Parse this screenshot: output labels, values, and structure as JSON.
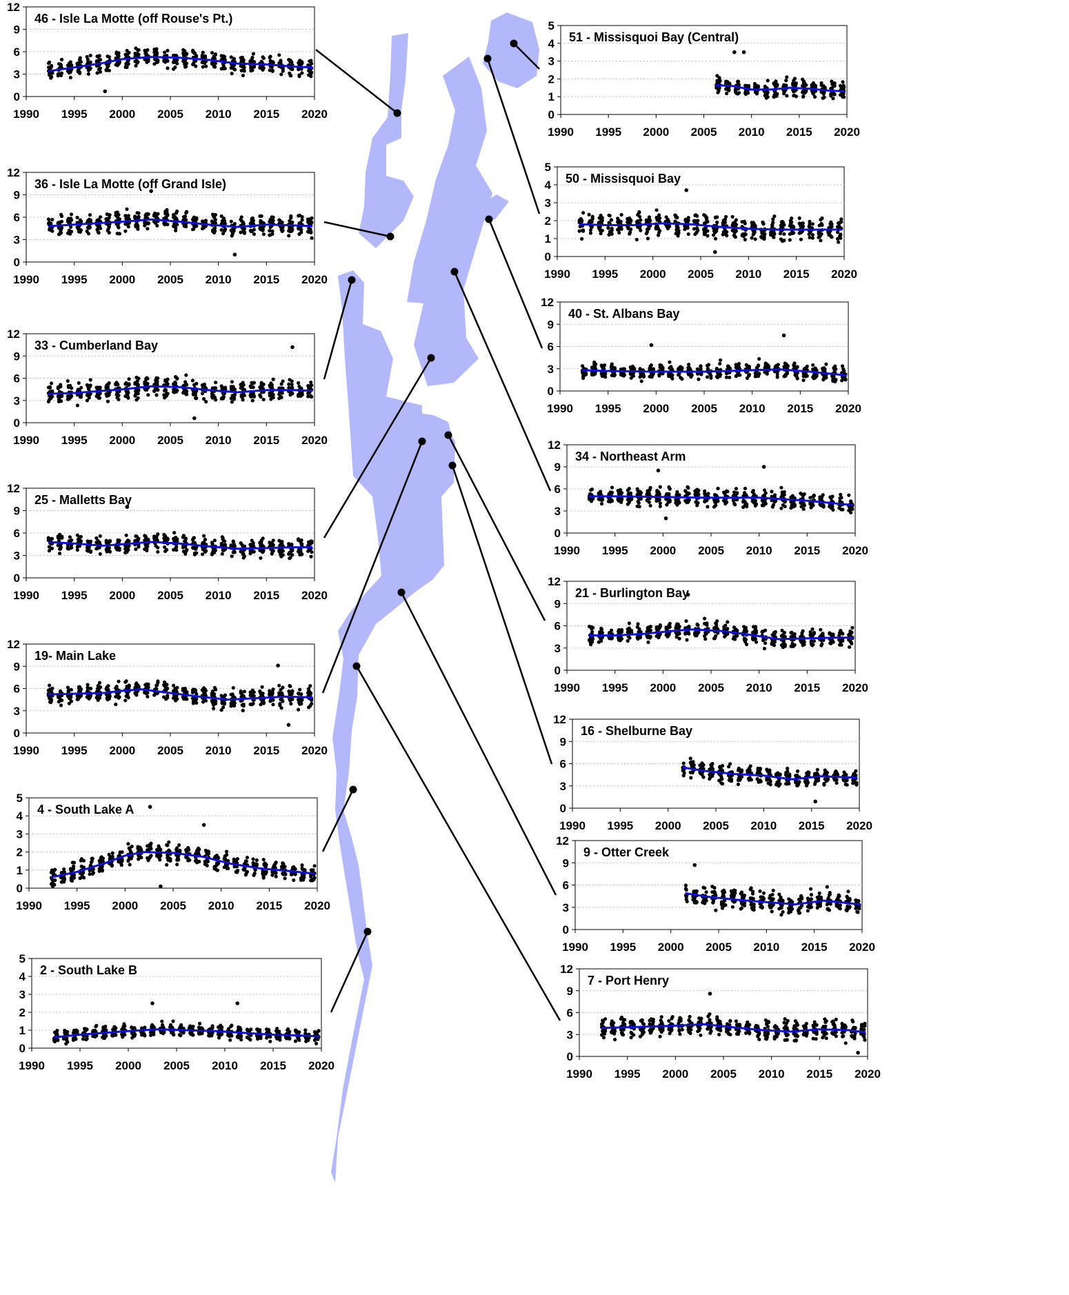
{
  "figure": {
    "colors": {
      "lake": "#b3b8fa",
      "trend": "#1010d8",
      "points": "#000000",
      "grid": "#bbbbbb",
      "leader": "#000000"
    },
    "x_ticks": [
      1990,
      1995,
      2000,
      2005,
      2010,
      2015,
      2020
    ]
  },
  "chart_data": [
    {
      "type": "scatter",
      "title": "46 - Isle La Motte (off Rouse's Pt.)",
      "side": "left",
      "xlim": [
        1990,
        2020
      ],
      "ylim": [
        0,
        12
      ],
      "yticks": [
        0,
        3,
        6,
        9,
        12
      ],
      "start": 1992.3,
      "end": 2019.8,
      "trend": {
        "x": [
          1992.3,
          1995,
          1998,
          2000,
          2003,
          2006,
          2009,
          2012,
          2015,
          2018,
          2019.8
        ],
        "y": [
          3.4,
          3.9,
          4.5,
          5.0,
          5.3,
          5.2,
          4.9,
          4.4,
          4.3,
          4.0,
          3.9
        ]
      },
      "spread": 1.0,
      "outliers": [
        {
          "x": 1998.2,
          "y": 0.7
        }
      ]
    },
    {
      "type": "scatter",
      "title": "36 - Isle La Motte (off Grand Isle)",
      "side": "left",
      "xlim": [
        1990,
        2020
      ],
      "ylim": [
        0,
        12
      ],
      "yticks": [
        0,
        3,
        6,
        9,
        12
      ],
      "start": 1992.3,
      "end": 2019.8,
      "trend": {
        "x": [
          1992.3,
          1995,
          2000,
          2003,
          2006,
          2009,
          2012,
          2015,
          2018,
          2019.8
        ],
        "y": [
          4.8,
          5.0,
          5.4,
          5.7,
          5.4,
          5.0,
          4.7,
          5.0,
          4.9,
          4.8
        ]
      },
      "spread": 1.1,
      "outliers": [
        {
          "x": 2003.0,
          "y": 9.5
        },
        {
          "x": 2011.7,
          "y": 1.0
        }
      ]
    },
    {
      "type": "scatter",
      "title": "33 - Cumberland Bay",
      "side": "left",
      "xlim": [
        1990,
        2020
      ],
      "ylim": [
        0,
        12
      ],
      "yticks": [
        0,
        3,
        6,
        9,
        12
      ],
      "start": 1992.3,
      "end": 2019.8,
      "trend": {
        "x": [
          1992.3,
          1995,
          2000,
          2003,
          2006,
          2009,
          2012,
          2015,
          2018,
          2019.8
        ],
        "y": [
          3.9,
          4.0,
          4.5,
          4.9,
          4.8,
          4.4,
          4.1,
          4.4,
          4.4,
          4.3
        ]
      },
      "spread": 1.1,
      "outliers": [
        {
          "x": 2007.5,
          "y": 0.6
        },
        {
          "x": 2017.7,
          "y": 10.2
        }
      ]
    },
    {
      "type": "scatter",
      "title": "25 - Malletts Bay",
      "side": "left",
      "xlim": [
        1990,
        2020
      ],
      "ylim": [
        0,
        12
      ],
      "yticks": [
        0,
        3,
        6,
        9,
        12
      ],
      "start": 1992.3,
      "end": 2019.8,
      "trend": {
        "x": [
          1992.3,
          1995,
          1998,
          2000,
          2003,
          2006,
          2009,
          2012,
          2015,
          2018,
          2019.8
        ],
        "y": [
          4.8,
          4.6,
          4.3,
          4.5,
          4.8,
          4.6,
          4.2,
          3.9,
          4.0,
          4.1,
          4.1
        ]
      },
      "spread": 1.0,
      "outliers": [
        {
          "x": 2000.5,
          "y": 9.5
        }
      ]
    },
    {
      "type": "scatter",
      "title": "19- Main Lake",
      "side": "left",
      "xlim": [
        1990,
        2020
      ],
      "ylim": [
        0,
        12
      ],
      "yticks": [
        0,
        3,
        6,
        9,
        12
      ],
      "start": 1992.3,
      "end": 2019.8,
      "trend": {
        "x": [
          1992.3,
          1995,
          1998,
          2000,
          2002,
          2005,
          2008,
          2011,
          2014,
          2017,
          2019.8
        ],
        "y": [
          5.2,
          5.3,
          5.4,
          5.7,
          5.9,
          5.4,
          4.9,
          4.5,
          4.7,
          4.9,
          4.8
        ]
      },
      "spread": 1.1,
      "outliers": [
        {
          "x": 2016.2,
          "y": 9.1
        },
        {
          "x": 2017.3,
          "y": 1.1
        }
      ]
    },
    {
      "type": "scatter",
      "title": "4 - South Lake A",
      "side": "left",
      "xlim": [
        1990,
        2020
      ],
      "ylim": [
        0,
        5
      ],
      "yticks": [
        0,
        1,
        2,
        3,
        4,
        5
      ],
      "start": 1992.3,
      "end": 2019.8,
      "trend": {
        "x": [
          1992.3,
          1995,
          1998,
          2000,
          2002,
          2005,
          2008,
          2011,
          2014,
          2017,
          2019.8
        ],
        "y": [
          0.6,
          0.9,
          1.4,
          1.8,
          2.0,
          1.95,
          1.75,
          1.35,
          1.1,
          0.95,
          0.8
        ]
      },
      "spread": 0.45,
      "outliers": [
        {
          "x": 2002.6,
          "y": 4.5
        },
        {
          "x": 2003.7,
          "y": 0.1
        },
        {
          "x": 2008.2,
          "y": 3.5
        }
      ]
    },
    {
      "type": "scatter",
      "title": "2 - South Lake B",
      "side": "left",
      "xlim": [
        1990,
        2020
      ],
      "ylim": [
        0,
        5
      ],
      "yticks": [
        0,
        1,
        2,
        3,
        4,
        5
      ],
      "start": 1992.3,
      "end": 2019.8,
      "trend": {
        "x": [
          1992.3,
          1995,
          2000,
          2003,
          2006,
          2009,
          2012,
          2015,
          2018,
          2019.8
        ],
        "y": [
          0.6,
          0.75,
          0.95,
          1.05,
          1.0,
          0.95,
          0.85,
          0.75,
          0.7,
          0.65
        ]
      },
      "spread": 0.3,
      "outliers": [
        {
          "x": 2002.5,
          "y": 2.5
        },
        {
          "x": 2011.3,
          "y": 2.5
        }
      ]
    },
    {
      "type": "scatter",
      "title": "51 - Missisquoi Bay (Central)",
      "side": "right",
      "xlim": [
        1990,
        2020
      ],
      "ylim": [
        0,
        5
      ],
      "yticks": [
        0,
        1,
        2,
        3,
        4,
        5
      ],
      "start": 2006.2,
      "end": 2019.8,
      "trend": {
        "x": [
          2006.2,
          2008,
          2010,
          2012,
          2014,
          2016,
          2018,
          2019.8
        ],
        "y": [
          1.65,
          1.6,
          1.4,
          1.4,
          1.5,
          1.45,
          1.35,
          1.3
        ]
      },
      "spread": 0.4,
      "outliers": [
        {
          "x": 2008.2,
          "y": 3.5
        },
        {
          "x": 2009.2,
          "y": 3.5
        }
      ]
    },
    {
      "type": "scatter",
      "title": "50 - Missisquoi Bay",
      "side": "right",
      "xlim": [
        1990,
        2020
      ],
      "ylim": [
        0,
        5
      ],
      "yticks": [
        0,
        1,
        2,
        3,
        4,
        5
      ],
      "start": 1992.3,
      "end": 2019.8,
      "trend": {
        "x": [
          1992.3,
          1995,
          1998,
          2001,
          2004,
          2007,
          2010,
          2013,
          2016,
          2019.8
        ],
        "y": [
          1.8,
          1.75,
          1.75,
          1.85,
          1.8,
          1.65,
          1.55,
          1.5,
          1.5,
          1.5
        ]
      },
      "spread": 0.5,
      "outliers": [
        {
          "x": 2003.5,
          "y": 3.7
        },
        {
          "x": 2006.5,
          "y": 0.25
        }
      ]
    },
    {
      "type": "scatter",
      "title": "40 - St. Albans Bay",
      "side": "right",
      "xlim": [
        1990,
        2020
      ],
      "ylim": [
        0,
        12
      ],
      "yticks": [
        0,
        3,
        6,
        9,
        12
      ],
      "start": 1992.3,
      "end": 2019.8,
      "trend": {
        "x": [
          1992.3,
          1995,
          2000,
          2005,
          2010,
          2013,
          2016,
          2019.8
        ],
        "y": [
          2.8,
          2.7,
          2.6,
          2.6,
          2.8,
          2.9,
          2.6,
          2.1
        ]
      },
      "spread": 0.9,
      "outliers": [
        {
          "x": 2013.3,
          "y": 7.5
        },
        {
          "x": 1999.5,
          "y": 6.2
        }
      ]
    },
    {
      "type": "scatter",
      "title": "34 - Northeast Arm",
      "side": "right",
      "xlim": [
        1990,
        2020
      ],
      "ylim": [
        0,
        12
      ],
      "yticks": [
        0,
        3,
        6,
        9,
        12
      ],
      "start": 1992.3,
      "end": 2019.8,
      "trend": {
        "x": [
          1992.3,
          1995,
          2000,
          2005,
          2010,
          2015,
          2019.8
        ],
        "y": [
          5.0,
          5.0,
          4.9,
          4.8,
          4.8,
          4.4,
          3.8
        ]
      },
      "spread": 1.0,
      "outliers": [
        {
          "x": 1999.5,
          "y": 8.5
        },
        {
          "x": 2010.5,
          "y": 9.0
        },
        {
          "x": 2000.3,
          "y": 2.0
        }
      ]
    },
    {
      "type": "scatter",
      "title": "21 - Burlington Bay",
      "side": "right",
      "xlim": [
        1990,
        2020
      ],
      "ylim": [
        0,
        12
      ],
      "yticks": [
        0,
        3,
        6,
        9,
        12
      ],
      "start": 1992.3,
      "end": 2019.8,
      "trend": {
        "x": [
          1992.3,
          1995,
          1998,
          2001,
          2003,
          2006,
          2009,
          2012,
          2015,
          2018,
          2019.8
        ],
        "y": [
          4.7,
          4.7,
          4.9,
          5.3,
          5.5,
          5.3,
          4.8,
          4.2,
          4.3,
          4.4,
          4.4
        ]
      },
      "spread": 1.0,
      "outliers": [
        {
          "x": 2002.6,
          "y": 10.2
        }
      ]
    },
    {
      "type": "scatter",
      "title": "16 - Shelburne Bay",
      "side": "right",
      "xlim": [
        1990,
        2020
      ],
      "ylim": [
        0,
        12
      ],
      "yticks": [
        0,
        3,
        6,
        9,
        12
      ],
      "start": 2001.5,
      "end": 2019.8,
      "trend": {
        "x": [
          2001.5,
          2004,
          2007,
          2010,
          2013,
          2016,
          2019.8
        ],
        "y": [
          5.5,
          5.0,
          4.6,
          4.4,
          3.9,
          4.3,
          4.1
        ]
      },
      "spread": 1.0,
      "outliers": [
        {
          "x": 2015.4,
          "y": 0.9
        }
      ]
    },
    {
      "type": "scatter",
      "title": "9 - Otter Creek",
      "side": "right",
      "xlim": [
        1990,
        2020
      ],
      "ylim": [
        0,
        12
      ],
      "yticks": [
        0,
        3,
        6,
        9,
        12
      ],
      "start": 2001.5,
      "end": 2019.8,
      "trend": {
        "x": [
          2001.5,
          2004,
          2007,
          2010,
          2013,
          2016,
          2019.8
        ],
        "y": [
          4.9,
          4.4,
          4.0,
          3.7,
          3.4,
          3.9,
          3.4
        ]
      },
      "spread": 1.2,
      "outliers": [
        {
          "x": 2002.5,
          "y": 8.7
        }
      ]
    },
    {
      "type": "scatter",
      "title": "7 - Port Henry",
      "side": "right",
      "xlim": [
        1990,
        2020
      ],
      "ylim": [
        0,
        12
      ],
      "yticks": [
        0,
        3,
        6,
        9,
        12
      ],
      "start": 1992.3,
      "end": 2019.8,
      "trend": {
        "x": [
          1992.3,
          1995,
          2000,
          2003,
          2006,
          2009,
          2012,
          2015,
          2018,
          2019.8
        ],
        "y": [
          3.9,
          4.0,
          4.2,
          4.4,
          4.0,
          3.6,
          3.4,
          3.7,
          3.6,
          3.3
        ]
      },
      "spread": 1.1,
      "outliers": [
        {
          "x": 2003.6,
          "y": 8.6
        },
        {
          "x": 2019.0,
          "y": 0.5
        }
      ]
    }
  ]
}
